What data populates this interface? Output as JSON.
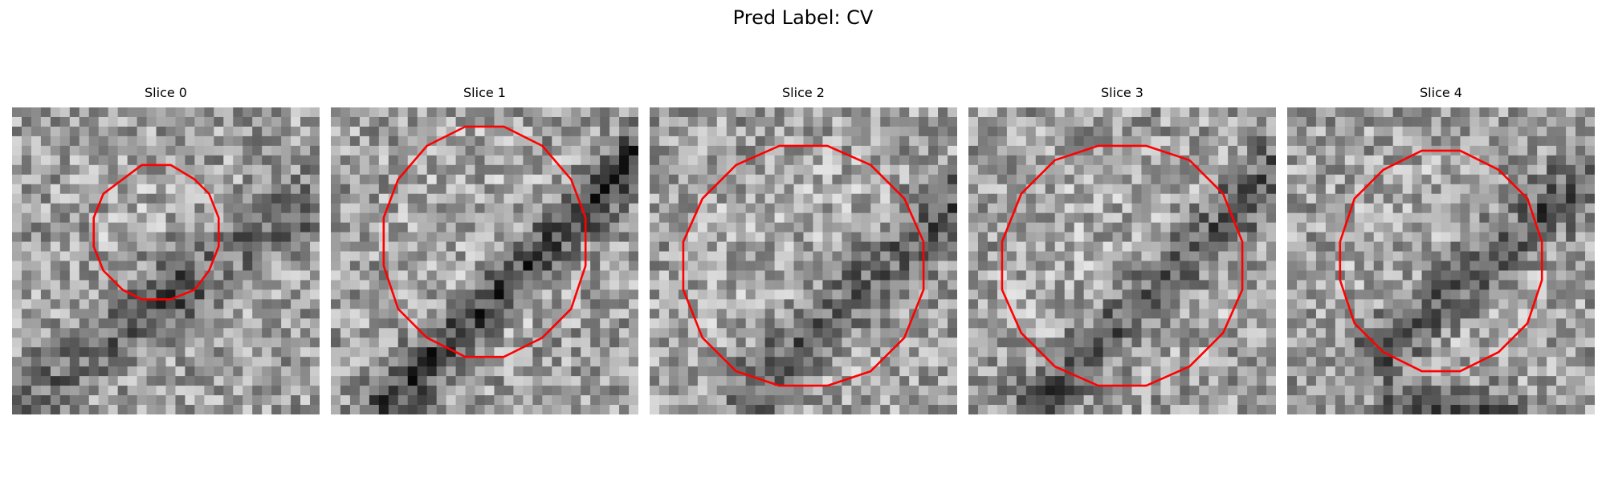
{
  "figure": {
    "title": "Pred Label: CV"
  },
  "panels": [
    {
      "title": "Slice 0",
      "contour_color": "#ff0000",
      "contour_center": [
        0.47,
        0.41
      ],
      "contour_radius": [
        0.21,
        0.22
      ],
      "dark_bands": [
        {
          "p1": [
            0.4,
            0.62
          ],
          "p2": [
            1.0,
            0.3
          ],
          "w": 0.16,
          "s": 0.22
        },
        {
          "p1": [
            0.0,
            0.98
          ],
          "p2": [
            0.55,
            0.62
          ],
          "w": 0.14,
          "s": 0.2
        }
      ],
      "seed": 11
    },
    {
      "title": "Slice 1",
      "contour_color": "#ff0000",
      "contour_center": [
        0.5,
        0.44
      ],
      "contour_radius": [
        0.34,
        0.38
      ],
      "dark_bands": [
        {
          "p1": [
            0.15,
            1.0
          ],
          "p2": [
            1.0,
            0.15
          ],
          "w": 0.12,
          "s": 0.42
        }
      ],
      "seed": 23
    },
    {
      "title": "Slice 2",
      "contour_color": "#ff0000",
      "contour_center": [
        0.5,
        0.52
      ],
      "contour_radius": [
        0.4,
        0.4
      ],
      "dark_bands": [
        {
          "p1": [
            0.35,
            0.9
          ],
          "p2": [
            1.0,
            0.3
          ],
          "w": 0.16,
          "s": 0.28
        }
      ],
      "seed": 37
    },
    {
      "title": "Slice 3",
      "contour_color": "#ff0000",
      "contour_center": [
        0.5,
        0.51
      ],
      "contour_radius": [
        0.4,
        0.4
      ],
      "dark_bands": [
        {
          "p1": [
            0.2,
            1.0
          ],
          "p2": [
            1.0,
            0.2
          ],
          "w": 0.14,
          "s": 0.32
        }
      ],
      "seed": 41
    },
    {
      "title": "Slice 4",
      "contour_color": "#ff0000",
      "contour_center": [
        0.5,
        0.5
      ],
      "contour_radius": [
        0.34,
        0.36
      ],
      "dark_bands": [
        {
          "p1": [
            0.3,
            0.8
          ],
          "p2": [
            1.0,
            0.2
          ],
          "w": 0.14,
          "s": 0.32
        },
        {
          "p1": [
            0.35,
            0.98
          ],
          "p2": [
            0.7,
            0.98
          ],
          "w": 0.1,
          "s": 0.3
        }
      ],
      "seed": 53
    }
  ]
}
